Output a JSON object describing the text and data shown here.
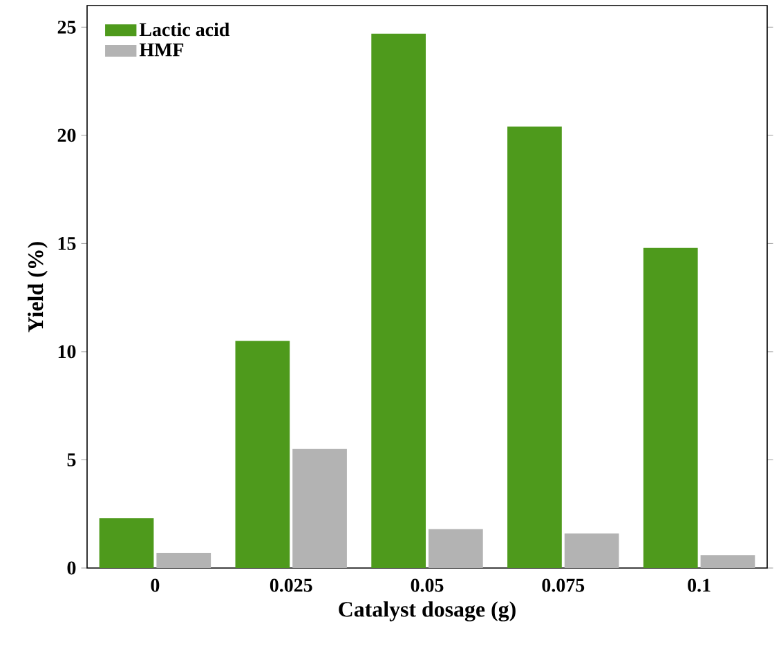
{
  "chart_data": {
    "type": "bar",
    "xlabel": "Catalyst dosage (g)",
    "ylabel": "Yield (%)",
    "categories": [
      "0",
      "0.025",
      "0.05",
      "0.075",
      "0.1"
    ],
    "series": [
      {
        "name": "Lactic acid",
        "color": "#4e9a1c",
        "values": [
          2.3,
          10.5,
          24.7,
          20.4,
          14.8
        ]
      },
      {
        "name": "HMF",
        "color": "#b3b3b3",
        "values": [
          0.7,
          5.5,
          1.8,
          1.6,
          0.6
        ]
      }
    ],
    "ylim": [
      0,
      26
    ],
    "yticks": [
      0,
      5,
      10,
      15,
      20,
      25
    ],
    "legend": "top left"
  }
}
